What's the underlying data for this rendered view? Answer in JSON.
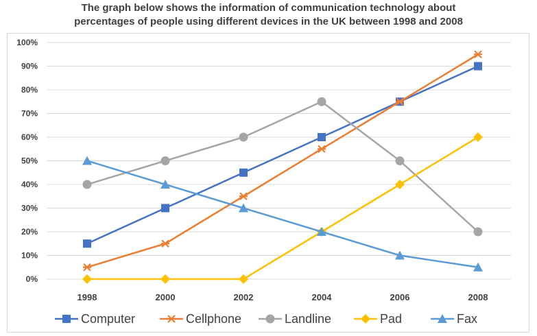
{
  "chart_data": {
    "type": "line",
    "title": "The graph below shows the information of communication technology about percentages of people using different devices in the UK between 1998 and 2008",
    "title_lines": [
      "The graph below shows the information of communication technology about",
      "percentages of people using different devices in the UK between 1998 and 2008"
    ],
    "categories": [
      "1998",
      "2000",
      "2002",
      "2004",
      "2006",
      "2008"
    ],
    "y_ticks": [
      "0%",
      "10%",
      "20%",
      "30%",
      "40%",
      "50%",
      "60%",
      "70%",
      "80%",
      "90%",
      "100%"
    ],
    "ylim": [
      0,
      100
    ],
    "grid": true,
    "legend_position": "bottom",
    "series": [
      {
        "name": "Computer",
        "color": "#4472c4",
        "marker": "square",
        "values": [
          15,
          30,
          45,
          60,
          75,
          90
        ]
      },
      {
        "name": "Cellphone",
        "color": "#ed7d31",
        "marker": "x",
        "values": [
          5,
          15,
          35,
          55,
          75,
          95
        ]
      },
      {
        "name": "Landline",
        "color": "#a5a5a5",
        "marker": "circle",
        "values": [
          40,
          50,
          60,
          75,
          50,
          20
        ]
      },
      {
        "name": "Pad",
        "color": "#ffc000",
        "marker": "diamond",
        "values": [
          0,
          0,
          0,
          20,
          40,
          60
        ]
      },
      {
        "name": "Fax",
        "color": "#5b9bd5",
        "marker": "triangle",
        "values": [
          50,
          40,
          30,
          20,
          10,
          5
        ]
      }
    ]
  }
}
